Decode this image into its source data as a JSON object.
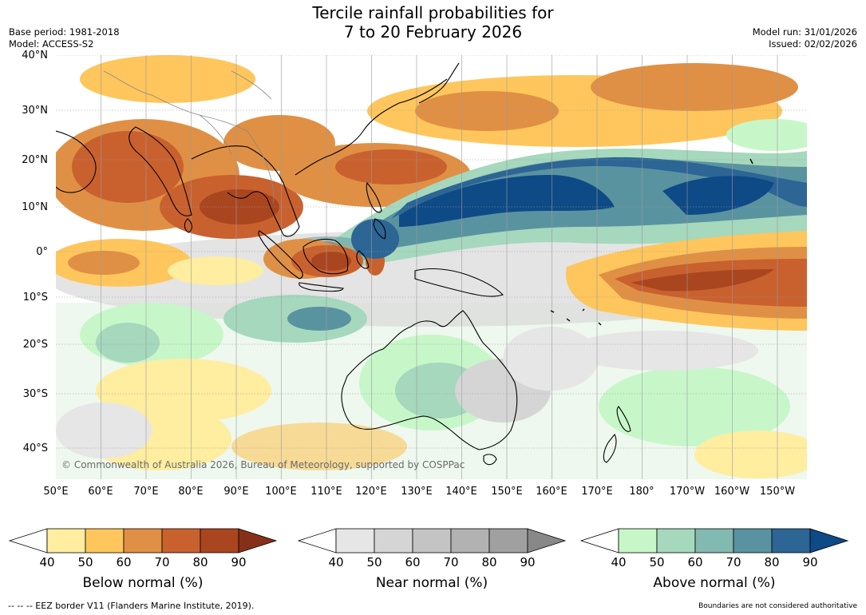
{
  "title_line1": "Tercile rainfall probabilities for",
  "title_line2": "7 to 20 February 2026",
  "base_period": "Base period: 1981-2018",
  "model": "Model: ACCESS-S2",
  "model_run": "Model run: 31/01/2026",
  "issued": "Issued: 02/02/2026",
  "lat_labels": [
    "40°N",
    "30°N",
    "20°N",
    "10°N",
    "0°",
    "10°S",
    "20°S",
    "30°S",
    "40°S"
  ],
  "lon_labels": [
    "50°E",
    "60°E",
    "70°E",
    "80°E",
    "90°E",
    "100°E",
    "110°E",
    "120°E",
    "130°E",
    "140°E",
    "150°E",
    "160°E",
    "170°E",
    "180°",
    "170°W",
    "160°W",
    "150°W"
  ],
  "copyright": "© Commonwealth of Australia 2026, Bureau of Meteorology, supported by COSPPac",
  "colorbars": [
    {
      "title": "Below normal (%)",
      "ticks": [
        "40",
        "50",
        "60",
        "70",
        "80",
        "90"
      ],
      "colors": [
        "#ffffff",
        "#ffeda0",
        "#fec65c",
        "#e09044",
        "#c9612f",
        "#a9461f",
        "#86301a"
      ]
    },
    {
      "title": "Near normal (%)",
      "ticks": [
        "40",
        "50",
        "60",
        "70",
        "80",
        "90"
      ],
      "colors": [
        "#ffffff",
        "#e6e6e6",
        "#d5d5d5",
        "#c4c4c4",
        "#b2b2b2",
        "#a0a0a0",
        "#888888"
      ]
    },
    {
      "title": "Above normal (%)",
      "ticks": [
        "40",
        "50",
        "60",
        "70",
        "80",
        "90"
      ],
      "colors": [
        "#ffffff",
        "#c7f7c9",
        "#a5d8bd",
        "#82b9b0",
        "#5a93a0",
        "#2d6595",
        "#0e4a85"
      ]
    }
  ],
  "eez_note": "--  --  -- EEZ border V11 (Flanders Marine Institute, 2019).",
  "boundaries_note": "Boundaries are not considered authoritative"
}
